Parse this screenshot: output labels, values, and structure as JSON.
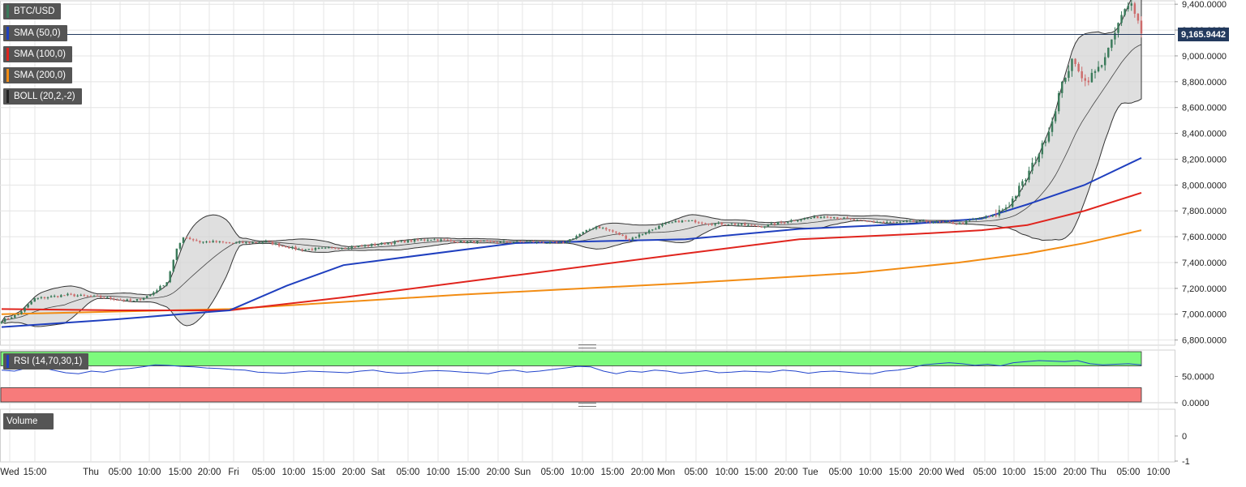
{
  "instrument": "BTC/USD",
  "indicators": [
    {
      "label": "SMA (50,0)",
      "color": "#1f3fbf"
    },
    {
      "label": "SMA (100,0)",
      "color": "#e0241d"
    },
    {
      "label": "SMA (200,0)",
      "color": "#f28c13"
    },
    {
      "label": "BOLL (20,2,-2)",
      "color": "#222222"
    }
  ],
  "last_price": "9,165.9442",
  "rsi_label": "RSI (14,70,30,1)",
  "volume_label": "Volume",
  "colors": {
    "up": "#3a7a5a",
    "down": "#cd6b6b",
    "boll_fill": "#d4d4d4",
    "rsi_overbought": "#7dfa7d",
    "rsi_oversold": "#f77b7b",
    "rsi_line": "#2244cc",
    "grid": "#e4e4e4"
  },
  "chart_data": [
    {
      "type": "candlestick",
      "title": "BTC/USD",
      "yticks": [
        "9,400.0000",
        "9,200.0000",
        "9,000.0000",
        "8,800.0000",
        "8,600.0000",
        "8,400.0000",
        "8,200.0000",
        "8,000.0000",
        "7,800.0000",
        "7,600.0000",
        "7,400.0000",
        "7,200.0000",
        "7,000.0000",
        "6,800.0000"
      ],
      "ylim": [
        6760,
        9420
      ],
      "xticks": [
        "Wed",
        "15:00",
        "Thu",
        "05:00",
        "10:00",
        "15:00",
        "20:00",
        "Fri",
        "05:00",
        "10:00",
        "15:00",
        "20:00",
        "Sat",
        "05:00",
        "10:00",
        "15:00",
        "20:00",
        "Sun",
        "05:00",
        "10:00",
        "15:00",
        "20:00",
        "Mon",
        "05:00",
        "10:00",
        "15:00",
        "20:00",
        "Tue",
        "05:00",
        "10:00",
        "15:00",
        "20:00",
        "Wed",
        "05:00",
        "10:00",
        "15:00",
        "20:00",
        "Thu",
        "05:00",
        "10:00"
      ],
      "close_anchors": [
        [
          0,
          6950
        ],
        [
          5,
          7000
        ],
        [
          10,
          7120
        ],
        [
          20,
          7150
        ],
        [
          30,
          7130
        ],
        [
          40,
          7100
        ],
        [
          45,
          7150
        ],
        [
          50,
          7250
        ],
        [
          53,
          7500
        ],
        [
          55,
          7600
        ],
        [
          60,
          7560
        ],
        [
          65,
          7560
        ],
        [
          70,
          7550
        ],
        [
          80,
          7560
        ],
        [
          90,
          7500
        ],
        [
          100,
          7510
        ],
        [
          110,
          7530
        ],
        [
          120,
          7560
        ],
        [
          130,
          7580
        ],
        [
          140,
          7560
        ],
        [
          150,
          7560
        ],
        [
          160,
          7560
        ],
        [
          170,
          7550
        ],
        [
          175,
          7620
        ],
        [
          180,
          7680
        ],
        [
          185,
          7640
        ],
        [
          190,
          7580
        ],
        [
          200,
          7690
        ],
        [
          205,
          7720
        ],
        [
          210,
          7720
        ],
        [
          215,
          7700
        ],
        [
          220,
          7700
        ],
        [
          230,
          7680
        ],
        [
          240,
          7730
        ],
        [
          250,
          7760
        ],
        [
          260,
          7720
        ],
        [
          270,
          7710
        ],
        [
          280,
          7720
        ],
        [
          290,
          7700
        ],
        [
          295,
          7740
        ],
        [
          300,
          7760
        ],
        [
          305,
          7850
        ],
        [
          310,
          8050
        ],
        [
          315,
          8300
        ],
        [
          318,
          8500
        ],
        [
          320,
          8700
        ],
        [
          322,
          8850
        ],
        [
          324,
          8950
        ],
        [
          326,
          8900
        ],
        [
          328,
          8800
        ],
        [
          330,
          8850
        ],
        [
          332,
          8900
        ],
        [
          334,
          9000
        ],
        [
          336,
          9100
        ],
        [
          338,
          9250
        ],
        [
          340,
          9350
        ],
        [
          342,
          9400
        ],
        [
          344,
          9300
        ],
        [
          345,
          9166
        ]
      ],
      "sma50": {
        "name": "SMA (50,0)",
        "x_fraction": [
          0,
          0.1,
          0.2,
          0.25,
          0.3,
          0.45,
          0.6,
          0.7,
          0.8,
          0.86,
          0.9,
          0.95,
          1
        ],
        "values": [
          6900,
          6960,
          7030,
          7220,
          7380,
          7550,
          7580,
          7660,
          7700,
          7740,
          7850,
          8000,
          8210
        ]
      },
      "sma100": {
        "name": "SMA (100,0)",
        "x_fraction": [
          0,
          0.1,
          0.2,
          0.3,
          0.45,
          0.6,
          0.7,
          0.8,
          0.86,
          0.9,
          0.95,
          1
        ],
        "values": [
          7040,
          7030,
          7030,
          7130,
          7300,
          7470,
          7580,
          7620,
          7650,
          7690,
          7800,
          7940
        ]
      },
      "sma200": {
        "name": "SMA (200,0)",
        "x_fraction": [
          0,
          0.2,
          0.4,
          0.6,
          0.75,
          0.84,
          0.9,
          0.95,
          1
        ],
        "values": [
          7000,
          7040,
          7150,
          7240,
          7320,
          7400,
          7470,
          7550,
          7650
        ]
      }
    },
    {
      "type": "line",
      "title": "RSI (14,70,30,1)",
      "yticks": [
        "50.0000",
        "0.0000"
      ],
      "ylim": [
        0,
        100
      ],
      "overbought": 70,
      "oversold": 30,
      "values": [
        62,
        60,
        66,
        68,
        62,
        57,
        55,
        60,
        58,
        63,
        65,
        68,
        72,
        71,
        69,
        68,
        66,
        65,
        63,
        62,
        58,
        57,
        56,
        58,
        60,
        59,
        58,
        57,
        60,
        62,
        58,
        56,
        57,
        60,
        61,
        60,
        58,
        57,
        55,
        60,
        62,
        58,
        60,
        63,
        66,
        69,
        68,
        60,
        55,
        60,
        58,
        62,
        60,
        56,
        58,
        61,
        57,
        58,
        60,
        59,
        58,
        62,
        60,
        56,
        59,
        60,
        58,
        56,
        55,
        60,
        62,
        66,
        72,
        74,
        76,
        74,
        71,
        73,
        70,
        76,
        78,
        80,
        79,
        78,
        80,
        74,
        72,
        73,
        74,
        72
      ]
    },
    {
      "type": "bar",
      "title": "Volume",
      "yticks": [
        "0",
        "-1"
      ]
    }
  ]
}
